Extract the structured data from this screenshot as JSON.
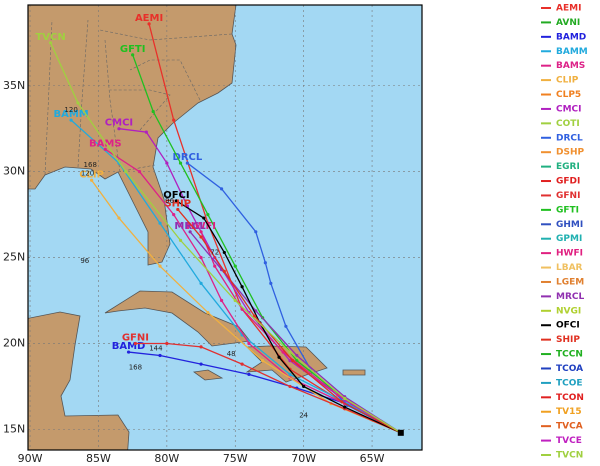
{
  "map": {
    "xlim": [
      -90.15,
      -61.35
    ],
    "ylim": [
      13.8,
      39.7
    ],
    "xticks": [
      {
        "value": -90,
        "label": "90W"
      },
      {
        "value": -85,
        "label": "85W"
      },
      {
        "value": -80,
        "label": "80W"
      },
      {
        "value": -75,
        "label": "75W"
      },
      {
        "value": -70,
        "label": "70W"
      },
      {
        "value": -65,
        "label": "65W"
      }
    ],
    "yticks": [
      {
        "value": 15,
        "label": "15N"
      },
      {
        "value": 20,
        "label": "20N"
      },
      {
        "value": 25,
        "label": "25N"
      },
      {
        "value": 30,
        "label": "30N"
      },
      {
        "value": 35,
        "label": "35N"
      }
    ],
    "grid": true,
    "models": [
      {
        "name": "AEMI",
        "color": "#e8302a",
        "lon": [
          -62.9,
          -67,
          -71,
          -74.5,
          -77,
          -79.5,
          -81.3
        ],
        "lat": [
          14.8,
          16.5,
          18.5,
          22,
          27,
          33,
          38.6
        ]
      },
      {
        "name": "AVNI",
        "color": "#22aa22"
      },
      {
        "name": "BAMD",
        "color": "#2222dd",
        "lon": [
          -62.9,
          -66.5,
          -70.5,
          -74,
          -77.5,
          -80.5,
          -82.8
        ],
        "lat": [
          14.8,
          16.4,
          17.4,
          18.2,
          18.8,
          19.3,
          19.5
        ]
      },
      {
        "name": "BAMM",
        "color": "#22aadd",
        "lon": [
          -62.9,
          -67,
          -71,
          -74.5,
          -77.5,
          -80.5,
          -83.5,
          -87
        ],
        "lat": [
          14.8,
          16.6,
          18.2,
          20.5,
          23.5,
          27,
          30.5,
          33
        ]
      },
      {
        "name": "BAMS",
        "color": "#dd2288",
        "lon": [
          -62.9,
          -67,
          -71,
          -74,
          -76,
          -77.5,
          -79.5,
          -82,
          -84.5
        ],
        "lat": [
          14.8,
          16.5,
          18,
          20,
          22.5,
          25,
          27.5,
          30,
          31.3
        ]
      },
      {
        "name": "CLIP",
        "color": "#f0b040",
        "lon": [
          -62.9,
          -68,
          -73,
          -77,
          -80.5,
          -83.5,
          -85.5
        ],
        "lat": [
          14.8,
          16.5,
          19,
          21.8,
          24.5,
          27.3,
          29.5
        ]
      },
      {
        "name": "CLP5",
        "color": "#f08020"
      },
      {
        "name": "CMCI",
        "color": "#b020c0",
        "lon": [
          -62.9,
          -67,
          -71,
          -74,
          -76.5,
          -78.5,
          -80,
          -81.5,
          -83.5
        ],
        "lat": [
          14.8,
          16.7,
          19,
          21.8,
          25,
          28,
          30.5,
          32.3,
          32.5
        ]
      },
      {
        "name": "COTI",
        "color": "#a0d040"
      },
      {
        "name": "DRCL",
        "color": "#3060e0",
        "lon": [
          -62.9,
          -66.8,
          -69.5,
          -71.3,
          -72.4,
          -72.8,
          -73.5,
          -76,
          -78.5
        ],
        "lat": [
          14.8,
          16.4,
          18.5,
          21,
          23.5,
          24.7,
          26.5,
          29,
          30.5
        ]
      },
      {
        "name": "DSHP",
        "color": "#f09030"
      },
      {
        "name": "EGRI",
        "color": "#20b080"
      },
      {
        "name": "GFDI",
        "color": "#e02020"
      },
      {
        "name": "GFNI",
        "color": "#e03030",
        "lon": [
          -62.9,
          -67,
          -71,
          -74.5,
          -77.5,
          -80,
          -82.3
        ],
        "lat": [
          14.8,
          16.2,
          17.5,
          18.8,
          19.8,
          20,
          20
        ]
      },
      {
        "name": "GFTI",
        "color": "#20c020",
        "lon": [
          -62.9,
          -67,
          -70.5,
          -73,
          -75,
          -77,
          -79,
          -81,
          -82.5
        ],
        "lat": [
          14.8,
          16.8,
          19,
          21.5,
          24.5,
          27.5,
          30.5,
          33.5,
          36.8
        ]
      },
      {
        "name": "GHMI",
        "color": "#3050c0"
      },
      {
        "name": "GPMI",
        "color": "#20b0b0"
      },
      {
        "name": "HWFI",
        "color": "#e02080",
        "lon": [
          -62.9,
          -67.5,
          -71.5,
          -74.5,
          -76.5,
          -77.5
        ],
        "lat": [
          14.8,
          17,
          19.5,
          22,
          24.5,
          26.5
        ]
      },
      {
        "name": "LBAR",
        "color": "#f0c060"
      },
      {
        "name": "LGEM",
        "color": "#e08030"
      },
      {
        "name": "MRCL",
        "color": "#9030b0",
        "lon": [
          -62.9,
          -67,
          -70.5,
          -73.5,
          -76,
          -78.3
        ],
        "lat": [
          14.8,
          16.9,
          19.3,
          21.9,
          24.3,
          26.5
        ]
      },
      {
        "name": "NVGI",
        "color": "#b0d030"
      },
      {
        "name": "OFCI",
        "color": "#000000",
        "lon": [
          -62.9,
          -67,
          -70,
          -71.8,
          -73.2,
          -74.5,
          -75.8,
          -77.3,
          -79.3
        ],
        "lat": [
          14.8,
          16.3,
          17.5,
          19.2,
          21.2,
          23.3,
          25.3,
          27.3,
          28.3
        ]
      },
      {
        "name": "SHIP",
        "color": "#e03020",
        "lon": [
          -62.9,
          -67.2,
          -70.8,
          -73.6,
          -75.8,
          -77.5,
          -79.2
        ],
        "lat": [
          14.8,
          16.6,
          19,
          21.6,
          24.2,
          26.2,
          27.8
        ]
      },
      {
        "name": "TCCN",
        "color": "#20b020"
      },
      {
        "name": "TCOA",
        "color": "#2040c0"
      },
      {
        "name": "TCOE",
        "color": "#20a0c0"
      },
      {
        "name": "TCON",
        "color": "#e02020"
      },
      {
        "name": "TV15",
        "color": "#f0a020"
      },
      {
        "name": "TVCA",
        "color": "#e06020"
      },
      {
        "name": "TVCE",
        "color": "#c020c0"
      },
      {
        "name": "TVCN",
        "color": "#a0d040",
        "lon": [
          -62.9,
          -67,
          -71,
          -75,
          -79,
          -83,
          -86.5,
          -88.5
        ],
        "lat": [
          14.8,
          16.8,
          19.5,
          22.5,
          26,
          30,
          34,
          37.5
        ]
      }
    ],
    "hour_labels": [
      {
        "label": "120",
        "lon": -87,
        "lat": 33.6
      },
      {
        "label": "168",
        "lon": -85.6,
        "lat": 30.4
      },
      {
        "label": "96",
        "lon": -86,
        "lat": 24.8
      },
      {
        "label": "144",
        "lon": -80.8,
        "lat": 19.7
      },
      {
        "label": "168",
        "lon": -82.3,
        "lat": 18.6
      },
      {
        "label": "48",
        "lon": -75.3,
        "lat": 19.4
      },
      {
        "label": "24",
        "lon": -70,
        "lat": 15.8
      },
      {
        "label": "72",
        "lon": -76.5,
        "lat": 25.3
      },
      {
        "label": "96",
        "lon": -79.8,
        "lat": 28.3
      },
      {
        "label": "120",
        "lon": -85.8,
        "lat": 29.9
      }
    ]
  }
}
